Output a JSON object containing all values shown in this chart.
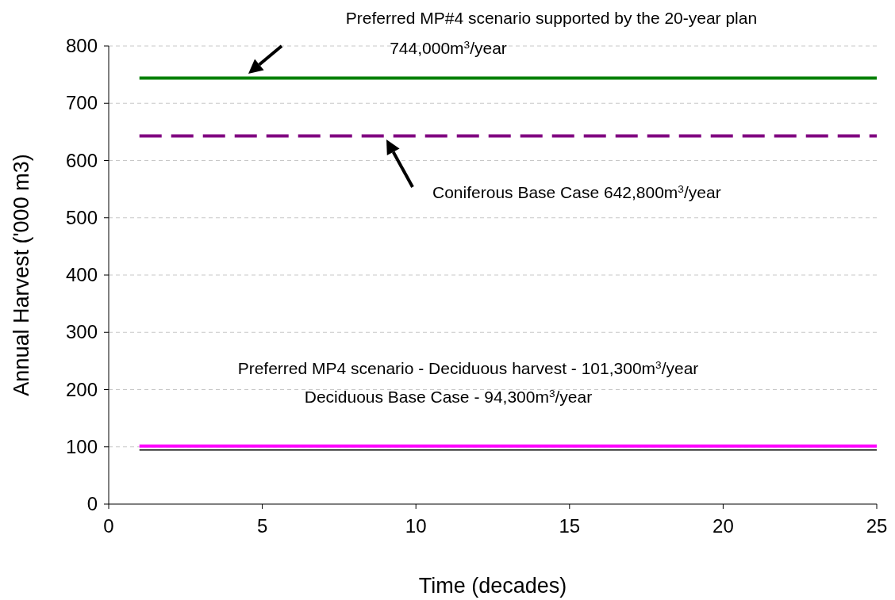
{
  "chart_data": {
    "type": "line",
    "xlabel": "Time (decades)",
    "ylabel": "Annual Harvest  ('000 m3)",
    "xlim": [
      0,
      25
    ],
    "ylim": [
      0,
      800
    ],
    "xticks": [
      0,
      5,
      10,
      15,
      20,
      25
    ],
    "yticks": [
      0,
      100,
      200,
      300,
      400,
      500,
      600,
      700,
      800
    ],
    "grid": "y",
    "x": [
      1,
      25
    ],
    "series": [
      {
        "color": "#008000",
        "values": [
          744,
          744
        ],
        "line_style": "solid"
      },
      {
        "color": "#800080",
        "values": [
          642.8,
          642.8
        ],
        "line_style": "dashed"
      },
      {
        "color": "#ff00ff",
        "values": [
          101.3,
          101.3
        ],
        "line_style": "solid"
      },
      {
        "color": "#000000",
        "values": [
          94.3,
          94.3
        ],
        "line_style": "solid"
      }
    ],
    "annotations": [
      "Preferred MP#4 scenario supported by the 20-year plan",
      "744,000m$^{3}$/year",
      "Coniferous Base Case 642,800m$^{3}$/year",
      "Preferred MP4 scenario - Deciduous harvest  -  101,300m$^{3}$/year",
      "Deciduous Base Case - 94,300m$^{3}$/year"
    ]
  }
}
